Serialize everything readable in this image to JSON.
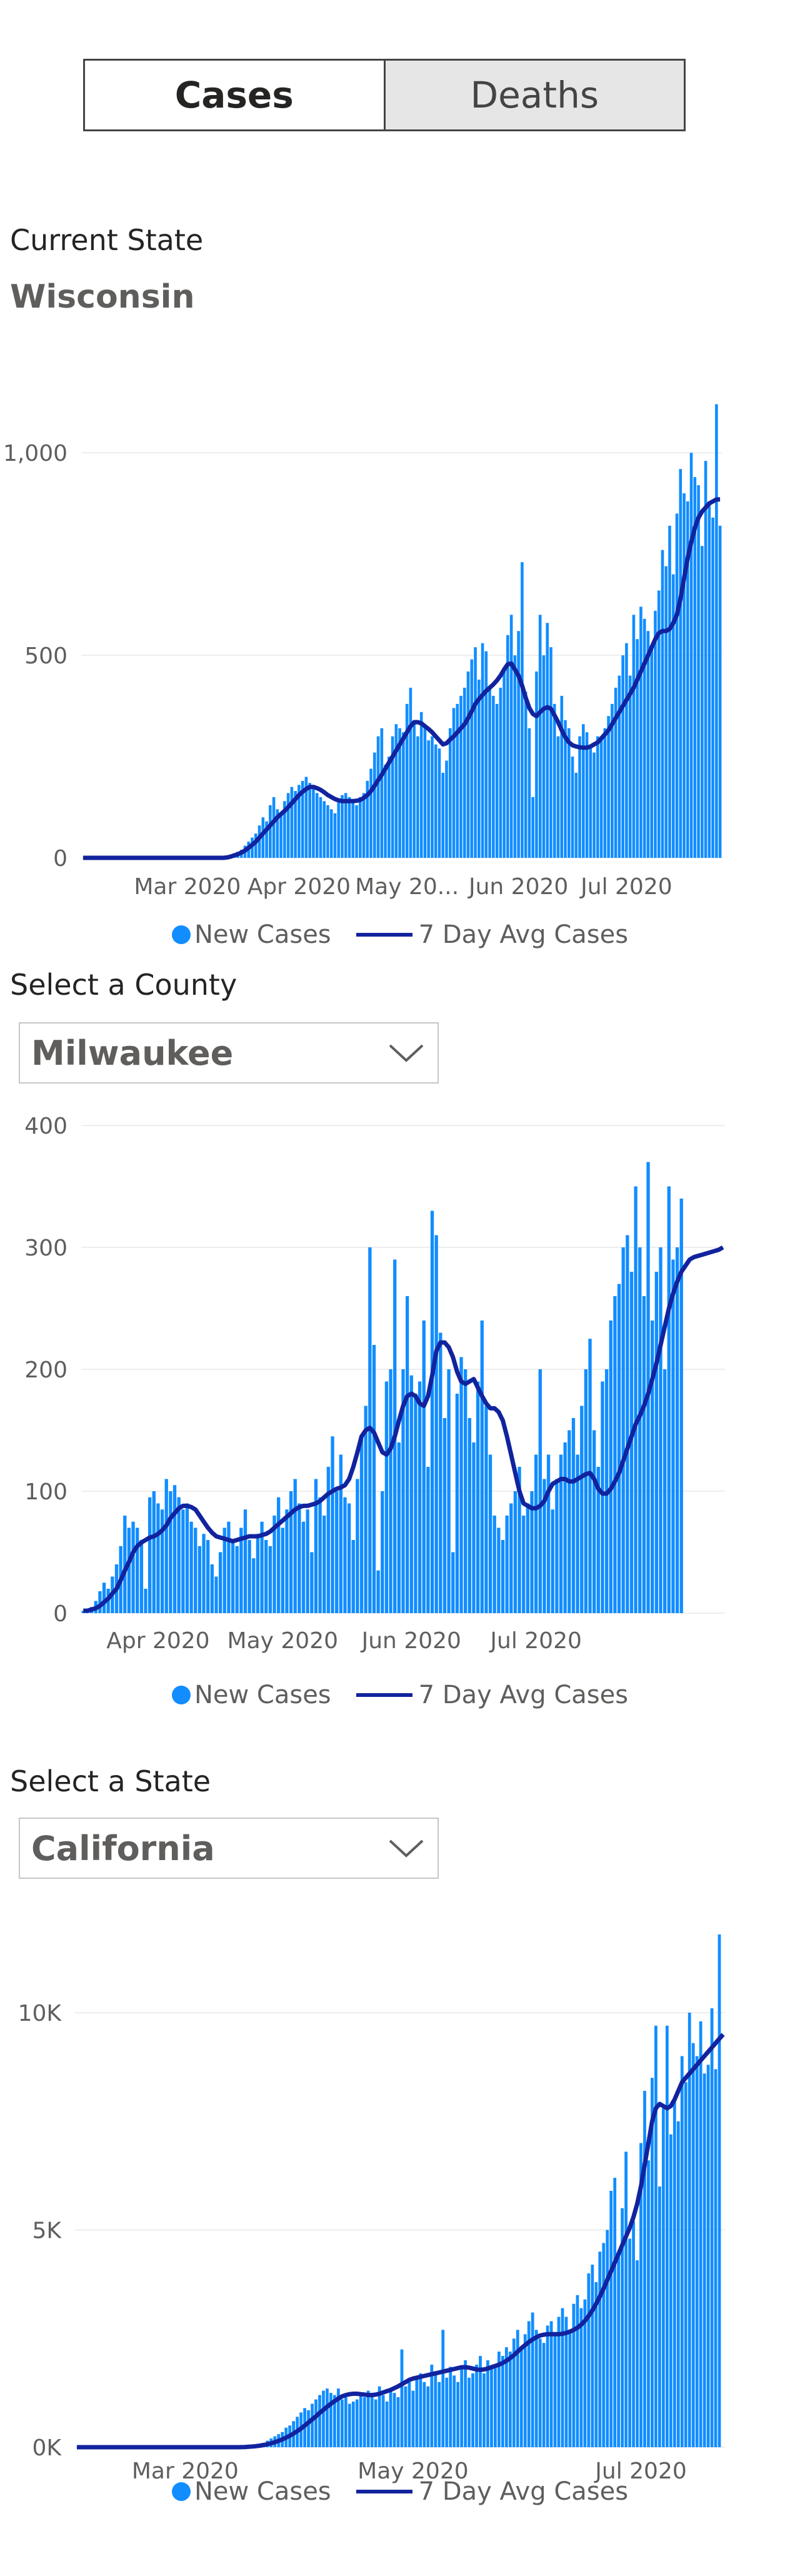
{
  "toggle": {
    "cases_label": "Cases",
    "deaths_label": "Deaths"
  },
  "current_state": {
    "label": "Current State",
    "value": "Wisconsin"
  },
  "county_select": {
    "label": "Select a County",
    "value": "Milwaukee"
  },
  "state_select": {
    "label": "Select a State",
    "value": "California"
  },
  "legend": {
    "bar_label": "New Cases",
    "line_label": "7 Day Avg Cases"
  },
  "colors": {
    "bar": "#118dff",
    "line": "#12239e",
    "grid": "#eeeeee",
    "tick": "#605e5c"
  },
  "chart_data": [
    {
      "type": "bar",
      "title": "",
      "region": "Wisconsin",
      "x_start": "2020-02-01",
      "ylim": [
        0,
        1130
      ],
      "yticks": [
        0,
        500,
        1000
      ],
      "ytick_labels": [
        "0",
        "500",
        "1,000"
      ],
      "xticks": [
        "2020-03-01",
        "2020-04-01",
        "2020-05-01",
        "2020-06-01",
        "2020-07-01"
      ],
      "xtick_labels": [
        "Mar 2020",
        "Apr 2020",
        "May 20...",
        "Jun 2020",
        "Jul 2020"
      ],
      "grid": true,
      "series": [
        {
          "name": "New Cases",
          "type": "bar",
          "values": [
            0,
            0,
            0,
            0,
            0,
            0,
            0,
            0,
            0,
            0,
            0,
            0,
            0,
            0,
            0,
            0,
            0,
            0,
            0,
            0,
            0,
            0,
            0,
            0,
            0,
            0,
            0,
            0,
            0,
            0,
            0,
            0,
            0,
            0,
            0,
            0,
            0,
            0,
            0,
            0,
            3,
            6,
            10,
            15,
            20,
            30,
            40,
            50,
            60,
            80,
            100,
            90,
            130,
            150,
            120,
            110,
            140,
            160,
            175,
            165,
            180,
            190,
            200,
            185,
            170,
            160,
            150,
            140,
            130,
            120,
            110,
            140,
            155,
            160,
            150,
            145,
            130,
            150,
            160,
            190,
            220,
            260,
            300,
            320,
            230,
            250,
            300,
            330,
            320,
            310,
            380,
            420,
            330,
            300,
            360,
            330,
            290,
            300,
            280,
            270,
            210,
            240,
            320,
            370,
            380,
            400,
            420,
            460,
            490,
            520,
            440,
            530,
            510,
            420,
            400,
            380,
            420,
            470,
            550,
            600,
            500,
            560,
            730,
            410,
            320,
            150,
            460,
            600,
            500,
            580,
            520,
            380,
            300,
            400,
            340,
            320,
            250,
            210,
            300,
            330,
            310,
            270,
            260,
            300,
            290,
            320,
            350,
            380,
            420,
            450,
            500,
            530,
            450,
            600,
            540,
            620,
            590,
            560,
            520,
            610,
            660,
            760,
            720,
            820,
            700,
            850,
            960,
            900,
            880,
            1000,
            940,
            920,
            770,
            980,
            880,
            840,
            1120,
            820
          ],
          "bar_values_note": "daily values read from the bars, starting Feb 1 2020"
        },
        {
          "name": "7 Day Avg Cases",
          "type": "line",
          "values": [
            0,
            0,
            0,
            0,
            0,
            0,
            0,
            0,
            0,
            0,
            0,
            0,
            0,
            0,
            0,
            0,
            0,
            0,
            0,
            0,
            0,
            0,
            0,
            0,
            0,
            0,
            0,
            0,
            0,
            0,
            0,
            0,
            0,
            0,
            0,
            0,
            0,
            0,
            0,
            0,
            1,
            3,
            6,
            9,
            13,
            18,
            25,
            32,
            40,
            50,
            60,
            70,
            80,
            90,
            100,
            108,
            116,
            125,
            135,
            145,
            155,
            163,
            170,
            175,
            175,
            172,
            168,
            162,
            155,
            150,
            145,
            142,
            140,
            140,
            140,
            140,
            141,
            143,
            148,
            155,
            165,
            178,
            192,
            205,
            220,
            235,
            250,
            265,
            280,
            295,
            310,
            325,
            335,
            335,
            332,
            325,
            318,
            310,
            300,
            290,
            280,
            283,
            292,
            300,
            310,
            320,
            330,
            345,
            362,
            380,
            392,
            402,
            412,
            420,
            428,
            438,
            450,
            465,
            478,
            480,
            465,
            450,
            425,
            395,
            370,
            355,
            350,
            360,
            368,
            372,
            368,
            352,
            335,
            315,
            298,
            285,
            278,
            275,
            273,
            272,
            272,
            275,
            280,
            285,
            295,
            305,
            315,
            330,
            345,
            360,
            375,
            390,
            405,
            420,
            440,
            460,
            480,
            500,
            520,
            540,
            555,
            560,
            560,
            565,
            580,
            600,
            640,
            690,
            740,
            780,
            815,
            840,
            855,
            865,
            875,
            880,
            885,
            885
          ]
        }
      ]
    },
    {
      "type": "bar",
      "title": "",
      "region": "Milwaukee",
      "x_start": "2020-03-14",
      "ylim": [
        0,
        400
      ],
      "yticks": [
        0,
        100,
        200,
        300,
        400
      ],
      "ytick_labels": [
        "0",
        "100",
        "200",
        "300",
        "400"
      ],
      "xticks": [
        "2020-04-01",
        "2020-05-01",
        "2020-06-01",
        "2020-07-01"
      ],
      "xtick_labels": [
        "Apr 2020",
        "May 2020",
        "Jun 2020",
        "Jul 2020"
      ],
      "grid": true,
      "series": [
        {
          "name": "New Cases",
          "type": "bar",
          "values": [
            2,
            3,
            5,
            10,
            18,
            25,
            20,
            30,
            40,
            55,
            80,
            70,
            75,
            70,
            60,
            20,
            95,
            100,
            90,
            85,
            110,
            100,
            105,
            95,
            85,
            90,
            75,
            70,
            55,
            65,
            60,
            40,
            30,
            50,
            70,
            75,
            60,
            55,
            70,
            85,
            60,
            45,
            65,
            75,
            60,
            55,
            80,
            95,
            70,
            85,
            100,
            110,
            90,
            75,
            85,
            50,
            110,
            95,
            80,
            120,
            145,
            100,
            130,
            95,
            90,
            60,
            110,
            145,
            170,
            300,
            220,
            35,
            100,
            190,
            200,
            290,
            140,
            200,
            260,
            195,
            180,
            190,
            240,
            120,
            330,
            310,
            230,
            160,
            200,
            50,
            180,
            210,
            200,
            160,
            140,
            190,
            240,
            170,
            130,
            80,
            70,
            60,
            80,
            90,
            100,
            120,
            80,
            90,
            100,
            130,
            200,
            110,
            130,
            85,
            110,
            130,
            140,
            150,
            160,
            130,
            170,
            200,
            225,
            150,
            120,
            190,
            200,
            240,
            260,
            270,
            300,
            310,
            280,
            350,
            300,
            260,
            370,
            240,
            280,
            300,
            200,
            350,
            290,
            300,
            340
          ]
        },
        {
          "name": "7 Day Avg Cases",
          "type": "line",
          "values": [
            2,
            2,
            3,
            4,
            6,
            9,
            12,
            16,
            20,
            27,
            35,
            42,
            50,
            55,
            58,
            60,
            62,
            63,
            65,
            68,
            72,
            78,
            82,
            86,
            88,
            88,
            87,
            85,
            80,
            75,
            70,
            66,
            63,
            62,
            61,
            60,
            59,
            60,
            61,
            62,
            63,
            63,
            63,
            64,
            65,
            67,
            70,
            73,
            76,
            79,
            82,
            85,
            87,
            88,
            88,
            89,
            90,
            92,
            95,
            98,
            100,
            102,
            103,
            105,
            110,
            120,
            132,
            145,
            150,
            152,
            148,
            140,
            132,
            130,
            135,
            145,
            158,
            170,
            178,
            180,
            178,
            172,
            170,
            178,
            195,
            215,
            222,
            222,
            218,
            210,
            198,
            190,
            188,
            190,
            192,
            185,
            178,
            172,
            168,
            168,
            165,
            158,
            145,
            130,
            115,
            100,
            90,
            88,
            86,
            86,
            88,
            92,
            100,
            106,
            108,
            110,
            110,
            108,
            108,
            110,
            112,
            114,
            115,
            110,
            102,
            98,
            98,
            102,
            108,
            115,
            125,
            135,
            145,
            155,
            162,
            170,
            180,
            192,
            205,
            220,
            235,
            250,
            262,
            272,
            280,
            285,
            290,
            292,
            293,
            294,
            295,
            296,
            297,
            298,
            300
          ]
        }
      ]
    },
    {
      "type": "bar",
      "title": "",
      "region": "California",
      "x_start": "2020-02-01",
      "ylim": [
        0,
        12000
      ],
      "yticks": [
        0,
        5000,
        10000
      ],
      "ytick_labels": [
        "0K",
        "5K",
        "10K"
      ],
      "xticks": [
        "2020-03-01",
        "2020-05-01",
        "2020-07-01"
      ],
      "xtick_labels": [
        "Mar 2020",
        "May 2020",
        "Jul 2020"
      ],
      "grid": true,
      "series": [
        {
          "name": "New Cases",
          "type": "bar",
          "values": [
            0,
            0,
            0,
            0,
            0,
            0,
            0,
            0,
            0,
            0,
            0,
            0,
            0,
            0,
            0,
            0,
            0,
            0,
            0,
            0,
            0,
            0,
            0,
            0,
            0,
            0,
            0,
            0,
            0,
            0,
            0,
            0,
            0,
            0,
            0,
            0,
            0,
            0,
            0,
            0,
            0,
            0,
            0,
            0,
            5,
            10,
            20,
            30,
            50,
            80,
            100,
            150,
            200,
            250,
            300,
            350,
            450,
            500,
            600,
            700,
            800,
            900,
            850,
            1000,
            1100,
            1200,
            1300,
            1350,
            1250,
            1200,
            1350,
            1100,
            1150,
            1000,
            1050,
            1100,
            1200,
            1150,
            1300,
            1250,
            1100,
            1400,
            1200,
            1050,
            1350,
            1250,
            1150,
            2250,
            1400,
            1500,
            1300,
            1600,
            1700,
            1500,
            1400,
            1900,
            1750,
            1500,
            2700,
            1600,
            1850,
            1650,
            1500,
            1800,
            2000,
            1600,
            1700,
            1900,
            2100,
            1700,
            2000,
            1800,
            1900,
            2200,
            2100,
            2300,
            2200,
            2500,
            2700,
            2300,
            2600,
            2900,
            3100,
            2700,
            2500,
            2400,
            2800,
            2900,
            2600,
            3000,
            3200,
            3000,
            2700,
            3300,
            3500,
            3200,
            3400,
            4000,
            4200,
            3800,
            4500,
            4700,
            5000,
            5900,
            6200,
            4500,
            5500,
            6800,
            4800,
            5200,
            4300,
            7000,
            8200,
            6600,
            8500,
            9700,
            6000,
            7800,
            9700,
            7200,
            8000,
            7500,
            9000,
            8400,
            10000,
            9300,
            9000,
            9800,
            8600,
            8800,
            10100,
            8700,
            11800
          ]
        },
        {
          "name": "7 Day Avg Cases",
          "type": "line",
          "values": [
            0,
            0,
            0,
            0,
            0,
            0,
            0,
            0,
            0,
            0,
            0,
            0,
            0,
            0,
            0,
            0,
            0,
            0,
            0,
            0,
            0,
            0,
            0,
            0,
            0,
            0,
            0,
            0,
            0,
            0,
            0,
            0,
            0,
            0,
            0,
            0,
            0,
            0,
            0,
            0,
            0,
            0,
            0,
            0,
            2,
            5,
            10,
            16,
            25,
            36,
            50,
            68,
            90,
            115,
            145,
            180,
            220,
            265,
            315,
            370,
            430,
            500,
            570,
            640,
            710,
            790,
            860,
            930,
            1000,
            1060,
            1120,
            1170,
            1200,
            1220,
            1230,
            1230,
            1220,
            1210,
            1200,
            1200,
            1210,
            1230,
            1260,
            1290,
            1320,
            1360,
            1400,
            1450,
            1500,
            1550,
            1580,
            1600,
            1620,
            1640,
            1660,
            1680,
            1700,
            1720,
            1740,
            1760,
            1780,
            1800,
            1820,
            1840,
            1840,
            1830,
            1810,
            1790,
            1780,
            1790,
            1810,
            1840,
            1870,
            1900,
            1940,
            1990,
            2050,
            2120,
            2200,
            2280,
            2350,
            2420,
            2480,
            2530,
            2570,
            2590,
            2600,
            2600,
            2600,
            2600,
            2610,
            2630,
            2660,
            2700,
            2750,
            2820,
            2910,
            3020,
            3150,
            3300,
            3470,
            3650,
            3850,
            4050,
            4250,
            4450,
            4650,
            4850,
            5050,
            5300,
            5600,
            6000,
            6500,
            7000,
            7500,
            7800,
            7900,
            7850,
            7800,
            7850,
            8000,
            8200,
            8400,
            8500,
            8600,
            8700,
            8800,
            8900,
            9000,
            9100,
            9200,
            9300,
            9400,
            9500
          ]
        }
      ]
    }
  ]
}
